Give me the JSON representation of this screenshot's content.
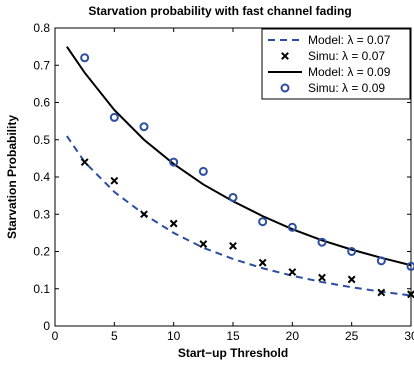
{
  "chart_data": {
    "type": "line",
    "title": "Starvation probability with fast channel fading",
    "xlabel": "Start−up Threshold",
    "ylabel": "Starvation Probability",
    "xlim": [
      0,
      30
    ],
    "ylim": [
      0,
      0.8
    ],
    "xticks": [
      0,
      5,
      10,
      15,
      20,
      25,
      30
    ],
    "xtick_labels": [
      "0",
      "5",
      "10",
      "15",
      "20",
      "25",
      "30"
    ],
    "yticks": [
      0,
      0.1,
      0.2,
      0.3,
      0.4,
      0.5,
      0.6,
      0.7,
      0.8
    ],
    "ytick_labels": [
      "0",
      "0.1",
      "0.2",
      "0.3",
      "0.4",
      "0.5",
      "0.6",
      "0.7",
      "0.8"
    ],
    "grid": false,
    "legend_position": "top-right",
    "series": [
      {
        "name": "Model: λ = 0.07",
        "kind": "line",
        "style": "dashed",
        "color": "#2b4ea0",
        "x": [
          1,
          2.5,
          5,
          7.5,
          10,
          12.5,
          15,
          17.5,
          20,
          22.5,
          25,
          27.5,
          30
        ],
        "y": [
          0.51,
          0.44,
          0.36,
          0.3,
          0.25,
          0.21,
          0.18,
          0.155,
          0.135,
          0.118,
          0.104,
          0.092,
          0.082
        ]
      },
      {
        "name": "Simu: λ = 0.07",
        "kind": "scatter",
        "marker": "x",
        "color": "#000000",
        "x": [
          2.5,
          5,
          7.5,
          10,
          12.5,
          15,
          17.5,
          20,
          22.5,
          25,
          27.5,
          30
        ],
        "y": [
          0.44,
          0.39,
          0.3,
          0.275,
          0.22,
          0.215,
          0.17,
          0.145,
          0.13,
          0.125,
          0.09,
          0.085
        ]
      },
      {
        "name": "Model: λ = 0.09",
        "kind": "line",
        "style": "solid",
        "color": "#000000",
        "x": [
          1,
          2.5,
          5,
          7.5,
          10,
          12.5,
          15,
          17.5,
          20,
          22.5,
          25,
          27.5,
          30
        ],
        "y": [
          0.75,
          0.68,
          0.58,
          0.5,
          0.435,
          0.38,
          0.335,
          0.295,
          0.26,
          0.23,
          0.205,
          0.183,
          0.163
        ]
      },
      {
        "name": "Simu: λ = 0.09",
        "kind": "scatter",
        "marker": "o",
        "color": "#2b4ea0",
        "x": [
          2.5,
          5,
          7.5,
          10,
          12.5,
          15,
          17.5,
          20,
          22.5,
          25,
          27.5,
          30
        ],
        "y": [
          0.72,
          0.56,
          0.535,
          0.44,
          0.415,
          0.345,
          0.28,
          0.265,
          0.225,
          0.2,
          0.175,
          0.16
        ]
      }
    ]
  }
}
